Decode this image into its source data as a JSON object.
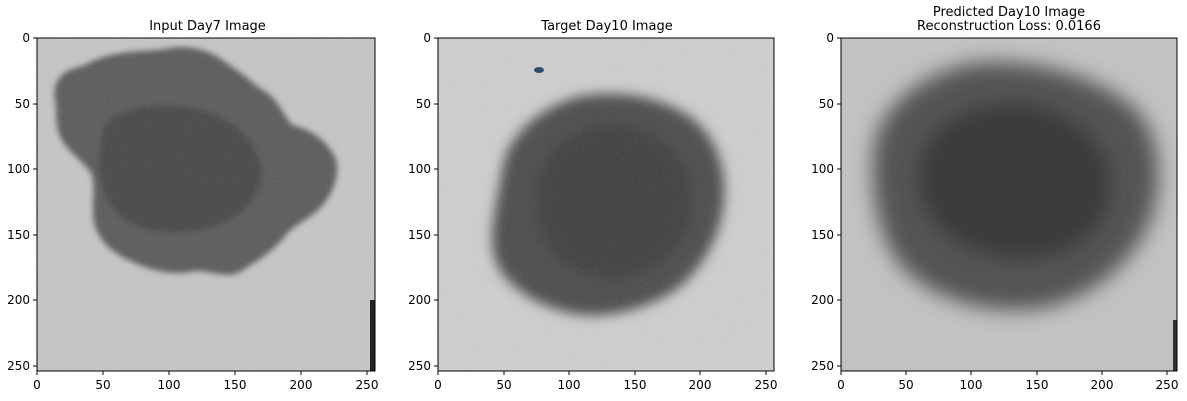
{
  "panels": [
    {
      "title_lines": [
        "Input Day7 Image"
      ],
      "x_ticks": [
        "0",
        "50",
        "100",
        "150",
        "200",
        "250"
      ],
      "y_ticks": [
        "0",
        "50",
        "100",
        "150",
        "200",
        "250"
      ],
      "image_description_name": "input-day7-spheroid-image"
    },
    {
      "title_lines": [
        "Target Day10 Image"
      ],
      "x_ticks": [
        "0",
        "50",
        "100",
        "150",
        "200",
        "250"
      ],
      "y_ticks": [
        "0",
        "50",
        "100",
        "150",
        "200",
        "250"
      ],
      "image_description_name": "target-day10-spheroid-image"
    },
    {
      "title_lines": [
        "Predicted Day10 Image",
        "Reconstruction Loss: 0.0166"
      ],
      "x_ticks": [
        "0",
        "50",
        "100",
        "150",
        "200",
        "250"
      ],
      "y_ticks": [
        "0",
        "50",
        "100",
        "150",
        "200",
        "250"
      ],
      "image_description_name": "predicted-day10-spheroid-image"
    }
  ],
  "tick_values": [
    0,
    50,
    100,
    150,
    200,
    250
  ],
  "image_extent": 256,
  "colors": {
    "background": "#ffffff",
    "axes": "#000000",
    "input_bg": "#c6c6c6",
    "input_blob": "#4f4f4f",
    "target_bg": "#cfcfcf",
    "target_blob": "#474747",
    "pred_bg": "#c2c2c2",
    "pred_blob": "#3e3e3e"
  }
}
